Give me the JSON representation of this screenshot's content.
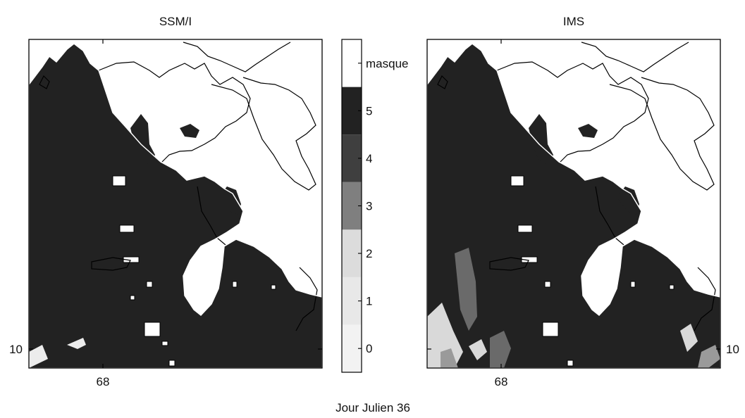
{
  "figure": {
    "caption": "Jour Julien 36"
  },
  "chart_data": [
    {
      "type": "heatmap",
      "title": "SSM/I",
      "y_tick_label": "10",
      "x_tick_label": "68",
      "description_colors": {
        "snow": "#222222",
        "land_outline": "#000000",
        "masked": "#ffffff"
      }
    },
    {
      "type": "heatmap",
      "title": "IMS",
      "y_tick_label": "10",
      "x_tick_label": "68",
      "description_colors": {
        "snow": "#222222",
        "land_outline": "#000000",
        "masked": "#ffffff"
      }
    }
  ],
  "colorbar": {
    "categories": [
      {
        "label": "0",
        "color": "#f2f2f2"
      },
      {
        "label": "1",
        "color": "#e8e8e8"
      },
      {
        "label": "2",
        "color": "#dcdcdc"
      },
      {
        "label": "3",
        "color": "#7f7f7f"
      },
      {
        "label": "4",
        "color": "#3f3f3f"
      },
      {
        "label": "5",
        "color": "#222222"
      },
      {
        "label": "masque",
        "color": "#ffffff"
      }
    ]
  }
}
